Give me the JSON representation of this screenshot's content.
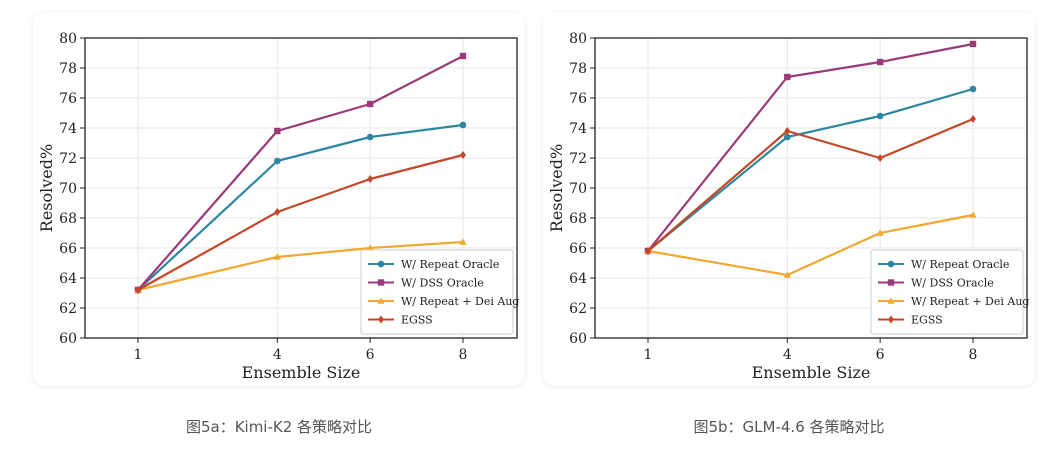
{
  "chart_data": [
    {
      "type": "line",
      "xlabel": "Ensemble Size",
      "ylabel": "Resolved%",
      "categories": [
        "1",
        "4",
        "6",
        "8"
      ],
      "ylim": [
        60,
        80
      ],
      "yticks": [
        60,
        62,
        64,
        66,
        68,
        70,
        72,
        74,
        76,
        78,
        80
      ],
      "grid": true,
      "legend_position": "bottom-right",
      "series": [
        {
          "name": "W/ Repeat Oracle",
          "color": "#2e87a0",
          "marker": "circle",
          "values": [
            63.2,
            71.8,
            73.4,
            74.2
          ]
        },
        {
          "name": "W/ DSS Oracle",
          "color": "#9b3a78",
          "marker": "square",
          "values": [
            63.2,
            73.8,
            75.6,
            78.8
          ]
        },
        {
          "name": "W/ Repeat + Dei Aug",
          "color": "#f0a830",
          "marker": "triangle",
          "values": [
            63.2,
            65.4,
            66.0,
            66.4
          ]
        },
        {
          "name": "EGSS",
          "color": "#c4472a",
          "marker": "diamond",
          "values": [
            63.2,
            68.4,
            70.6,
            72.2
          ]
        }
      ]
    },
    {
      "type": "line",
      "xlabel": "Ensemble Size",
      "ylabel": "Resolved%",
      "categories": [
        "1",
        "4",
        "6",
        "8"
      ],
      "ylim": [
        60,
        80
      ],
      "yticks": [
        60,
        62,
        64,
        66,
        68,
        70,
        72,
        74,
        76,
        78,
        80
      ],
      "grid": true,
      "legend_position": "bottom-right",
      "series": [
        {
          "name": "W/ Repeat Oracle",
          "color": "#2e87a0",
          "marker": "circle",
          "values": [
            65.8,
            73.4,
            74.8,
            76.6
          ]
        },
        {
          "name": "W/ DSS Oracle",
          "color": "#9b3a78",
          "marker": "square",
          "values": [
            65.8,
            77.4,
            78.4,
            79.6
          ]
        },
        {
          "name": "W/ Repeat + Dei Aug",
          "color": "#f0a830",
          "marker": "triangle",
          "values": [
            65.8,
            64.2,
            67.0,
            68.2
          ]
        },
        {
          "name": "EGSS",
          "color": "#c4472a",
          "marker": "diamond",
          "values": [
            65.8,
            73.8,
            72.0,
            74.6
          ]
        }
      ]
    }
  ],
  "captions": [
    "图5a：Kimi-K2 各策略对比",
    "图5b：GLM-4.6 各策略对比"
  ]
}
